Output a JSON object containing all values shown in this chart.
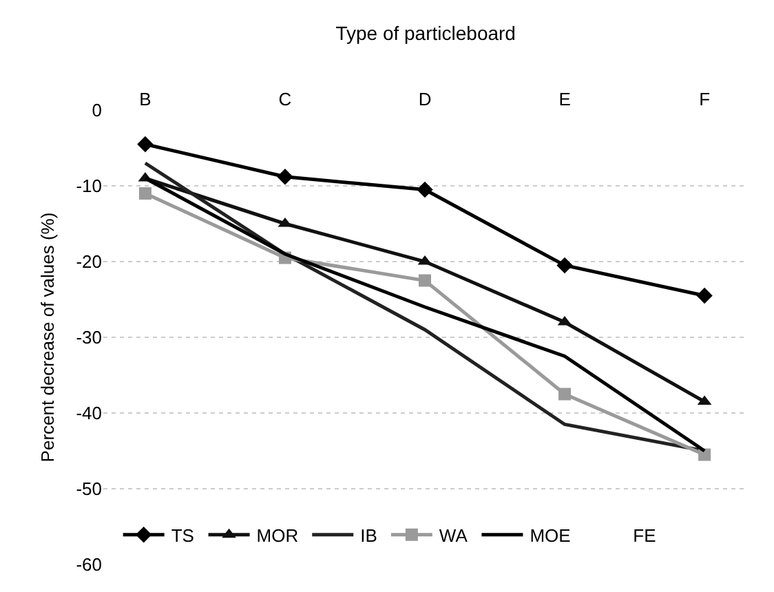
{
  "chart_data": {
    "type": "line",
    "title": "Type of particleboard",
    "ylabel": "Percent decrease of values (%)",
    "categories": [
      "B",
      "C",
      "D",
      "E",
      "F"
    ],
    "series": [
      {
        "name": "TS",
        "color": "#000000",
        "marker": "diamond",
        "values": [
          -4.5,
          -8.8,
          -10.5,
          -20.5,
          -24.5
        ]
      },
      {
        "name": "MOR",
        "color": "#111111",
        "marker": "triangle",
        "values": [
          -9,
          -15,
          -20,
          -28,
          -38.5
        ]
      },
      {
        "name": "IB",
        "color": "#222222",
        "marker": "none",
        "values": [
          -7,
          -19,
          -29,
          -41.5,
          -45
        ]
      },
      {
        "name": "WA",
        "color": "#9a9a9a",
        "marker": "square",
        "values": [
          -11,
          -19.5,
          -22.5,
          -37.5,
          -45.5
        ]
      },
      {
        "name": "MOE",
        "color": "#000000",
        "marker": "none",
        "values": [
          -9,
          -19,
          -26,
          -32.5,
          -45
        ]
      },
      {
        "name": "FE",
        "marker": "none",
        "values": [
          null,
          null,
          null,
          null,
          null
        ]
      }
    ],
    "ylim": [
      -60,
      0
    ],
    "yticks": [
      -60,
      -50,
      -40,
      -30,
      -20,
      -10,
      0
    ],
    "grid": "y",
    "legend": "bottom left",
    "line_style": "solid"
  }
}
